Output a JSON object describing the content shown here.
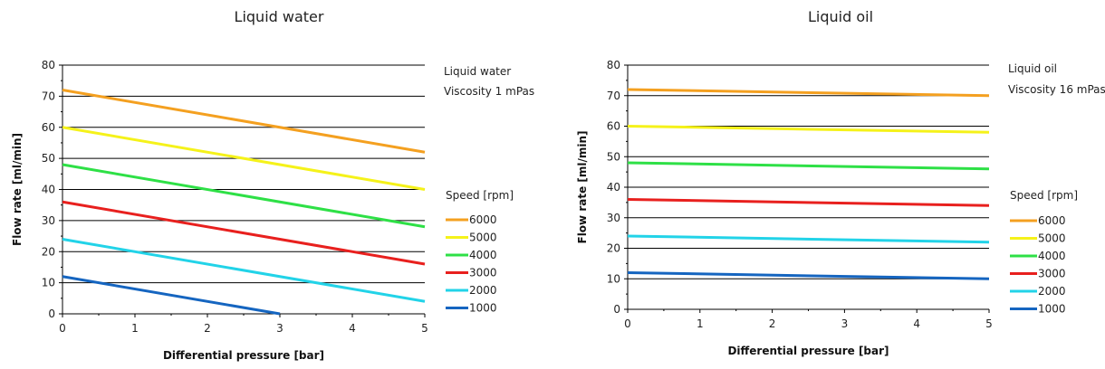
{
  "chart_data": [
    {
      "type": "line",
      "title": "Liquid water",
      "xlabel": "Differential pressure [bar]",
      "ylabel": "Flow rate [ml/min]",
      "xlim": [
        0,
        5
      ],
      "ylim": [
        0,
        80
      ],
      "xticks": [
        "0",
        "1",
        "2",
        "3",
        "4",
        "5"
      ],
      "yticks": [
        "0",
        "10",
        "20",
        "30",
        "40",
        "50",
        "60",
        "70",
        "80"
      ],
      "grid": "horizontal",
      "notes": [
        "Liquid water",
        "Viscosity 1 mPas"
      ],
      "legend_title": "Speed [rpm]",
      "legend_position": "right",
      "series": [
        {
          "name": "6000",
          "color": "#f4a020",
          "x": [
            0,
            5
          ],
          "y": [
            72,
            52
          ]
        },
        {
          "name": "5000",
          "color": "#f5f21a",
          "x": [
            0,
            5
          ],
          "y": [
            60,
            40
          ]
        },
        {
          "name": "4000",
          "color": "#2ee046",
          "x": [
            0,
            5
          ],
          "y": [
            48,
            28
          ]
        },
        {
          "name": "3000",
          "color": "#e8201e",
          "x": [
            0,
            5
          ],
          "y": [
            36,
            16
          ]
        },
        {
          "name": "2000",
          "color": "#22d3e8",
          "x": [
            0,
            5
          ],
          "y": [
            24,
            4
          ]
        },
        {
          "name": "1000",
          "color": "#1565c0",
          "x": [
            0,
            3
          ],
          "y": [
            12,
            0
          ]
        }
      ]
    },
    {
      "type": "line",
      "title": "Liquid oil",
      "xlabel": "Differential pressure [bar]",
      "ylabel": "Flow rate [ml/min]",
      "xlim": [
        0,
        5
      ],
      "ylim": [
        0,
        80
      ],
      "xticks": [
        "0",
        "1",
        "2",
        "3",
        "4",
        "5"
      ],
      "yticks": [
        "0",
        "10",
        "20",
        "30",
        "40",
        "50",
        "60",
        "70",
        "80"
      ],
      "grid": "horizontal",
      "notes": [
        "Liquid oil",
        "Viscosity 16 mPas"
      ],
      "legend_title": "Speed [rpm]",
      "legend_position": "right",
      "series": [
        {
          "name": "6000",
          "color": "#f4a020",
          "x": [
            0,
            5
          ],
          "y": [
            72,
            70
          ]
        },
        {
          "name": "5000",
          "color": "#f5f21a",
          "x": [
            0,
            5
          ],
          "y": [
            60,
            58
          ]
        },
        {
          "name": "4000",
          "color": "#2ee046",
          "x": [
            0,
            5
          ],
          "y": [
            48,
            46
          ]
        },
        {
          "name": "3000",
          "color": "#e8201e",
          "x": [
            0,
            5
          ],
          "y": [
            36,
            34
          ]
        },
        {
          "name": "2000",
          "color": "#22d3e8",
          "x": [
            0,
            5
          ],
          "y": [
            24,
            22
          ]
        },
        {
          "name": "1000",
          "color": "#1565c0",
          "x": [
            0,
            5
          ],
          "y": [
            12,
            10
          ]
        }
      ]
    }
  ]
}
